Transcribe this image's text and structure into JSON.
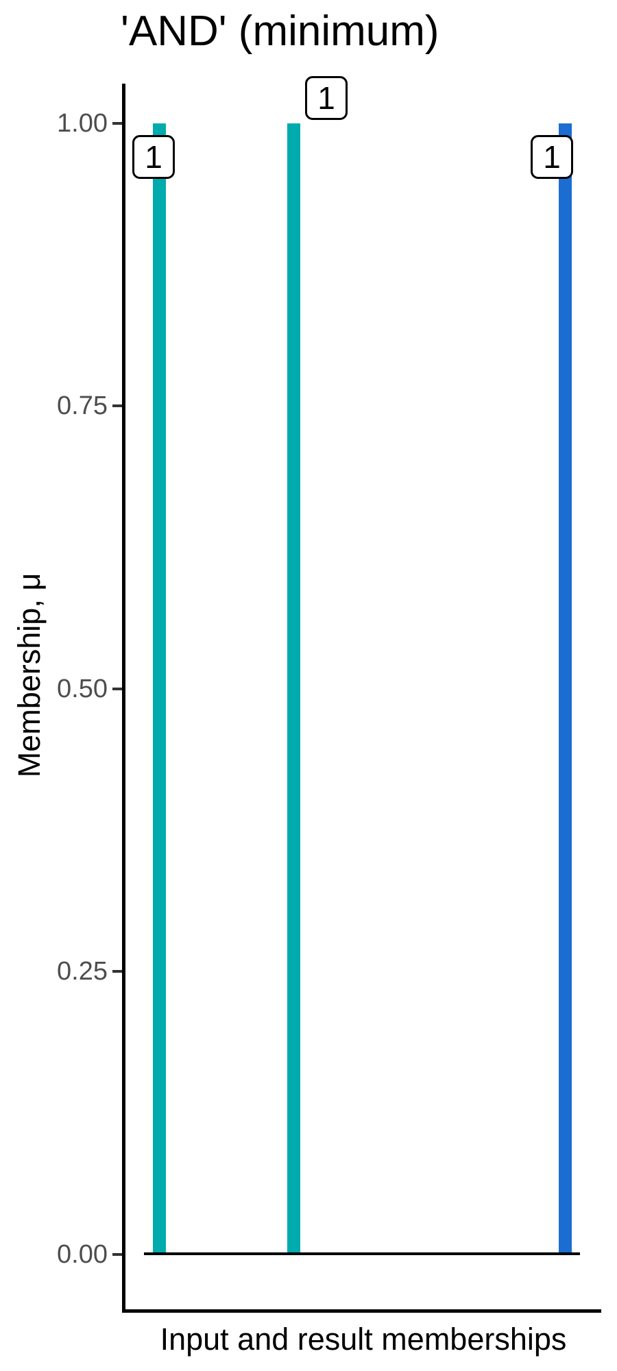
{
  "chart_data": {
    "type": "bar",
    "title": "'AND' (minimum)",
    "xlabel": "Input and result memberships",
    "ylabel": "Membership, μ",
    "ylim": [
      0,
      1
    ],
    "yticks": [
      "1.00",
      "0.75",
      "0.50",
      "0.25",
      "0.00"
    ],
    "grid": false,
    "legend": false,
    "colors": {
      "input": "#00ABAD",
      "result": "#1C6DD2",
      "axis": "#000000",
      "tick_label": "#4d4d4d"
    },
    "bars": [
      {
        "name": "input-membership-1",
        "value": 1,
        "label": "1",
        "color": "#00ABAD"
      },
      {
        "name": "input-membership-2",
        "value": 1,
        "label": "1",
        "color": "#00ABAD"
      },
      {
        "name": "result-membership",
        "value": 1,
        "label": "1",
        "color": "#1C6DD2"
      }
    ]
  }
}
